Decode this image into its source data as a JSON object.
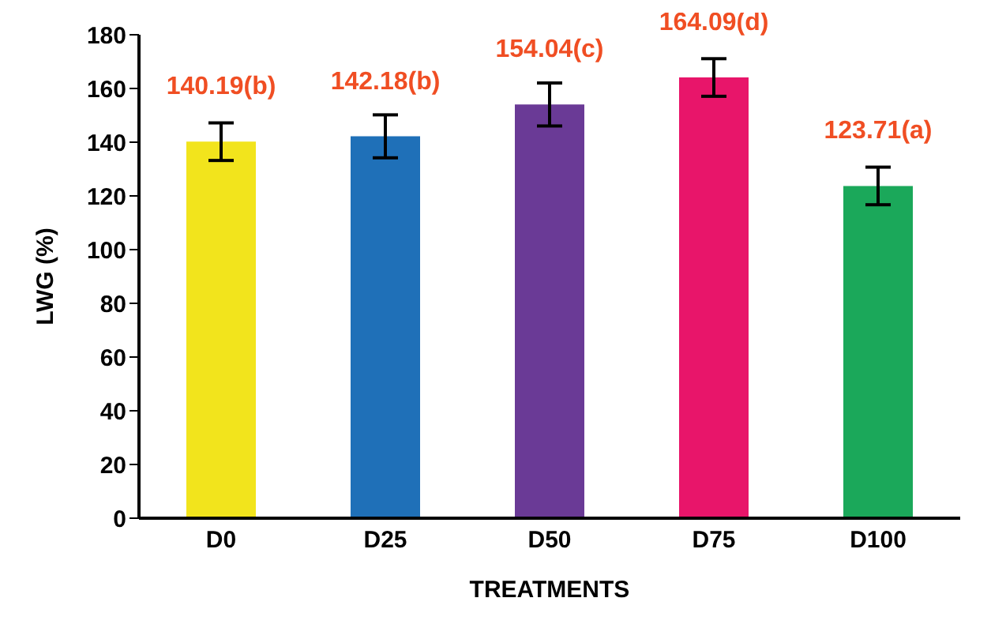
{
  "chart_data": {
    "type": "bar",
    "xlabel": "TREATMENTS",
    "ylabel": "LWG (%)",
    "categories": [
      "D0",
      "D25",
      "D50",
      "D75",
      "D100"
    ],
    "values": [
      140.19,
      142.18,
      154.04,
      164.09,
      123.71
    ],
    "colors": [
      "#f2e41c",
      "#1f70b8",
      "#6a3a96",
      "#e8156a",
      "#1ba85a"
    ],
    "errors": [
      7,
      8,
      8,
      7,
      7
    ],
    "value_labels": [
      "140.19(b)",
      "142.18(b)",
      "154.04(c)",
      "164.09(d)",
      "123.71(a)"
    ],
    "ylim": [
      0,
      180
    ],
    "yticks": [
      0,
      20,
      40,
      60,
      80,
      100,
      120,
      140,
      160,
      180
    ],
    "grid": false,
    "legend": false
  }
}
